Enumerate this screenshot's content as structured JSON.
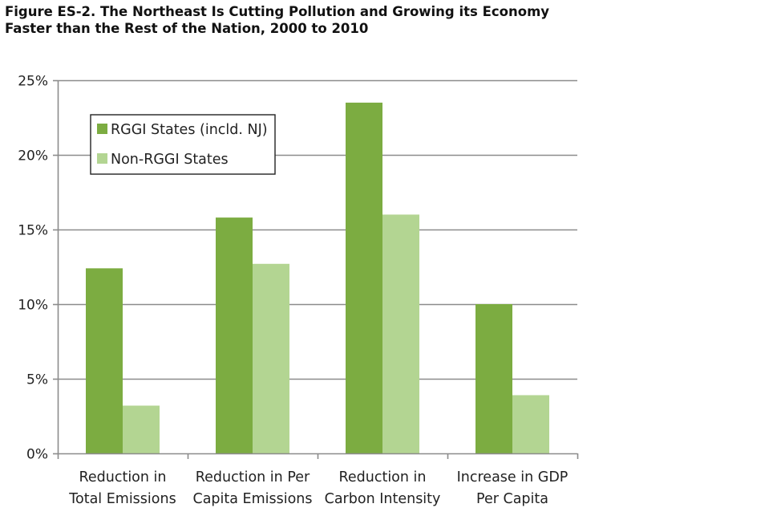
{
  "title": "Figure ES-2. The Northeast Is Cutting Pollution and Growing its Economy Faster than the Rest of the Nation, 2000 to 2010",
  "chart_data": {
    "type": "bar",
    "title": "Figure ES-2. The Northeast Is Cutting Pollution and Growing its Economy Faster than the Rest of the Nation, 2000 to 2010",
    "xlabel": "",
    "ylabel": "",
    "categories": [
      [
        "Reduction in",
        "Total Emissions"
      ],
      [
        "Reduction in Per",
        "Capita Emissions"
      ],
      [
        "Reduction in",
        "Carbon Intensity"
      ],
      [
        "Increase in GDP",
        "Per Capita"
      ]
    ],
    "series": [
      {
        "name": "RGGI States (incld. NJ)",
        "color": "#7cac41",
        "values": [
          12.4,
          15.8,
          23.5,
          10.0
        ]
      },
      {
        "name": "Non-RGGI States",
        "color": "#b3d592",
        "values": [
          3.2,
          12.7,
          16.0,
          3.9
        ]
      }
    ],
    "ylim": [
      0,
      25
    ],
    "yticks": [
      0,
      5,
      10,
      15,
      20,
      25
    ],
    "ytick_labels": [
      "0%",
      "5%",
      "10%",
      "15%",
      "20%",
      "25%"
    ],
    "grid": true,
    "legend_position": "top-left"
  }
}
